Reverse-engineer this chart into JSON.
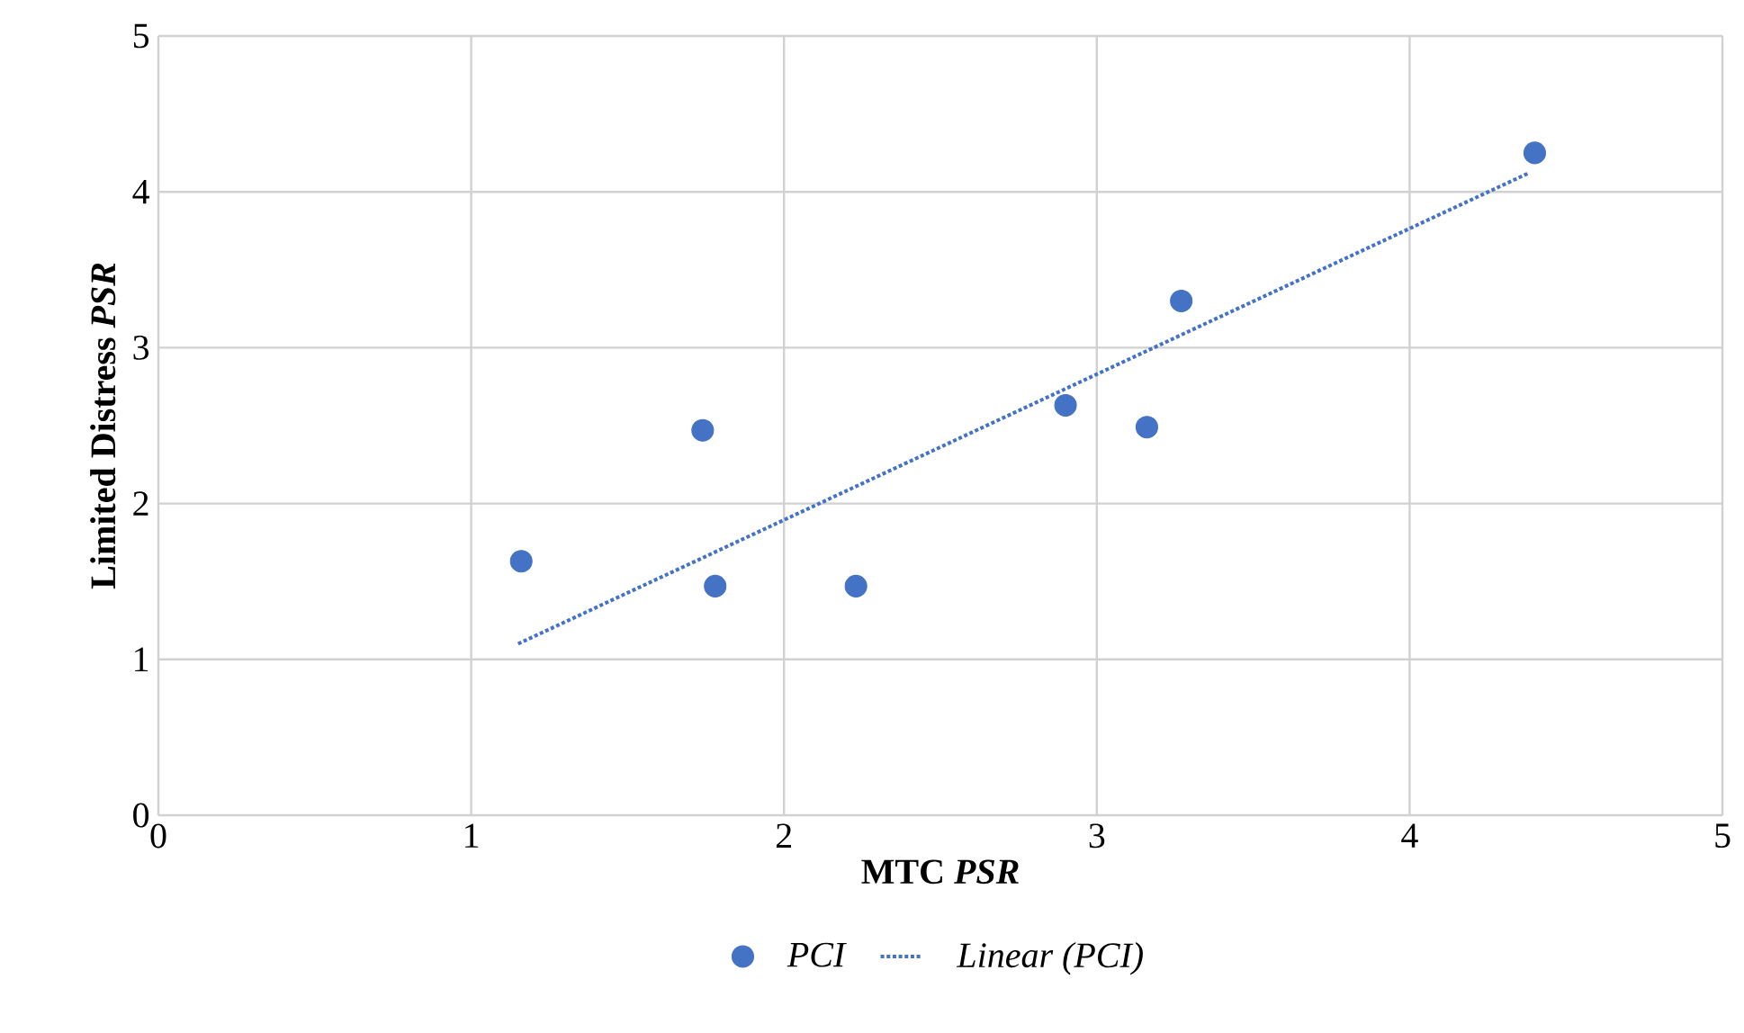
{
  "chart_data": {
    "type": "scatter",
    "xlabel": "MTC *PSR*",
    "ylabel": "Limited Distress *PSR*",
    "xlim": [
      0,
      5
    ],
    "ylim": [
      0,
      5
    ],
    "xticks": [
      0,
      1,
      2,
      3,
      4,
      5
    ],
    "yticks": [
      0,
      1,
      2,
      3,
      4,
      5
    ],
    "grid": true,
    "legend": "bottom",
    "series": [
      {
        "name": "PCI",
        "marker": "circle",
        "color": "#4472c4",
        "x": [
          1.16,
          1.74,
          1.78,
          2.23,
          2.9,
          3.16,
          3.27,
          4.4
        ],
        "values": [
          1.63,
          2.47,
          1.47,
          1.47,
          2.63,
          2.49,
          3.3,
          4.25
        ]
      },
      {
        "name": "Linear (PCI)",
        "type": "line",
        "marker": "none",
        "line_style": "dotted",
        "color": "#4472c4",
        "x": [
          1.15,
          4.38
        ],
        "values": [
          1.1,
          4.12
        ]
      }
    ]
  }
}
